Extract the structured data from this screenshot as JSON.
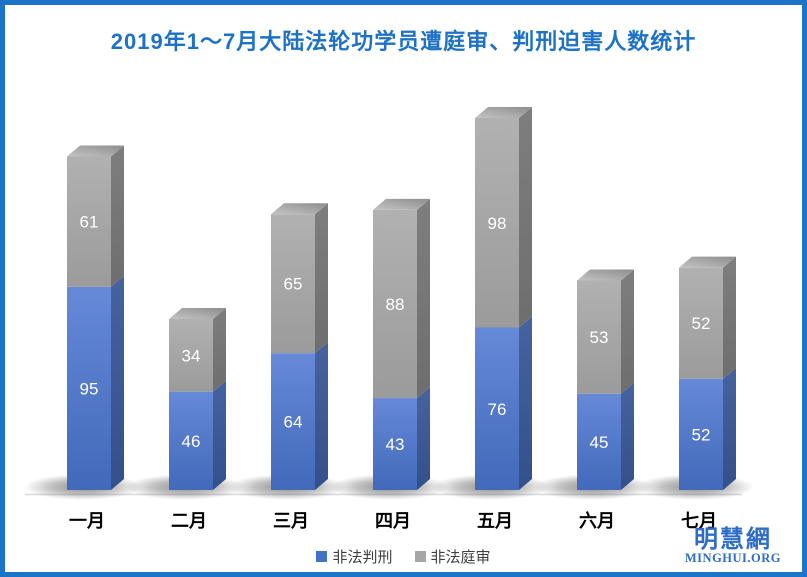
{
  "chart_data": {
    "type": "bar",
    "stacked": true,
    "style": "3d-cuboid stacked columns with soft drop shadows",
    "title": "2019年1～7月大陆法轮功学员遭庭审、判刑迫害人数统计",
    "categories": [
      "一月",
      "二月",
      "三月",
      "四月",
      "五月",
      "六月",
      "七月"
    ],
    "series": [
      {
        "name": "非法判刑",
        "color": "#4472c4",
        "values": [
          95,
          46,
          64,
          43,
          76,
          45,
          52
        ]
      },
      {
        "name": "非法庭审",
        "color": "#a6a6a6",
        "values": [
          61,
          34,
          65,
          88,
          98,
          53,
          52
        ]
      }
    ],
    "totals": [
      156,
      80,
      129,
      131,
      174,
      98,
      104
    ],
    "value_labels": "white numbers centered in each segment",
    "legend_position": "bottom-center",
    "grid": false,
    "axes": {
      "x_axis_line": true,
      "y_axis": "hidden"
    }
  },
  "colors": {
    "title": "#1e72c6",
    "frame_border": "#1b74c8",
    "axis_line": "#d9d9d9",
    "legend_text": "#3f3f3f"
  },
  "watermark": {
    "name_cn": "明慧網",
    "domain": "MINGHUI.ORG",
    "color": "#2e6cc8"
  }
}
